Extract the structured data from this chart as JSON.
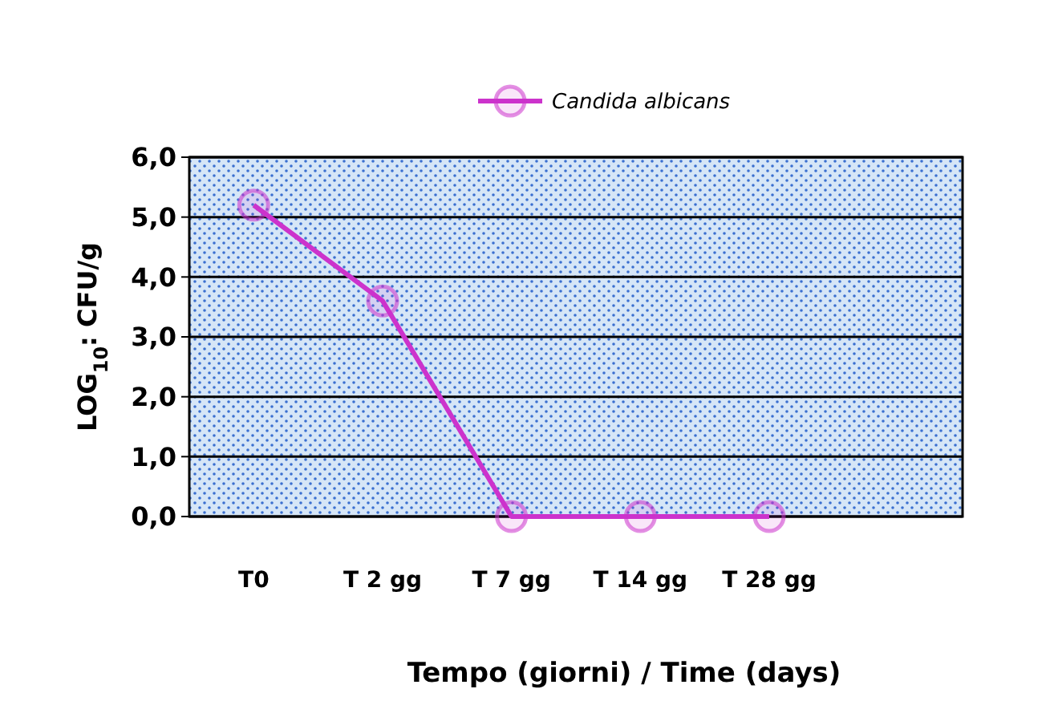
{
  "chart_data": {
    "type": "line",
    "xlabel": "Tempo (giorni) / Time (days)",
    "ylabel": "LOG$_{10}$: CFU/g",
    "categories": [
      "T0",
      "T 2 gg",
      "T 7 gg",
      "T 14 gg",
      "T 28 gg",
      null
    ],
    "series": [
      {
        "name": "Candida albicans",
        "color": "#cc33cc",
        "values": [
          5.2,
          3.6,
          0,
          0,
          0,
          null
        ]
      }
    ],
    "ylim": [
      0,
      6
    ],
    "yticks": [
      {
        "value": 0,
        "label": "0,0"
      },
      {
        "value": 1,
        "label": "1,0"
      },
      {
        "value": 2,
        "label": "2,0"
      },
      {
        "value": 3,
        "label": "3,0"
      },
      {
        "value": 4,
        "label": "4,0"
      },
      {
        "value": 5,
        "label": "5,0"
      },
      {
        "value": 6,
        "label": "6,0"
      }
    ],
    "grid": "y",
    "legend": "top",
    "marker": "circle",
    "line_style": "solid"
  }
}
